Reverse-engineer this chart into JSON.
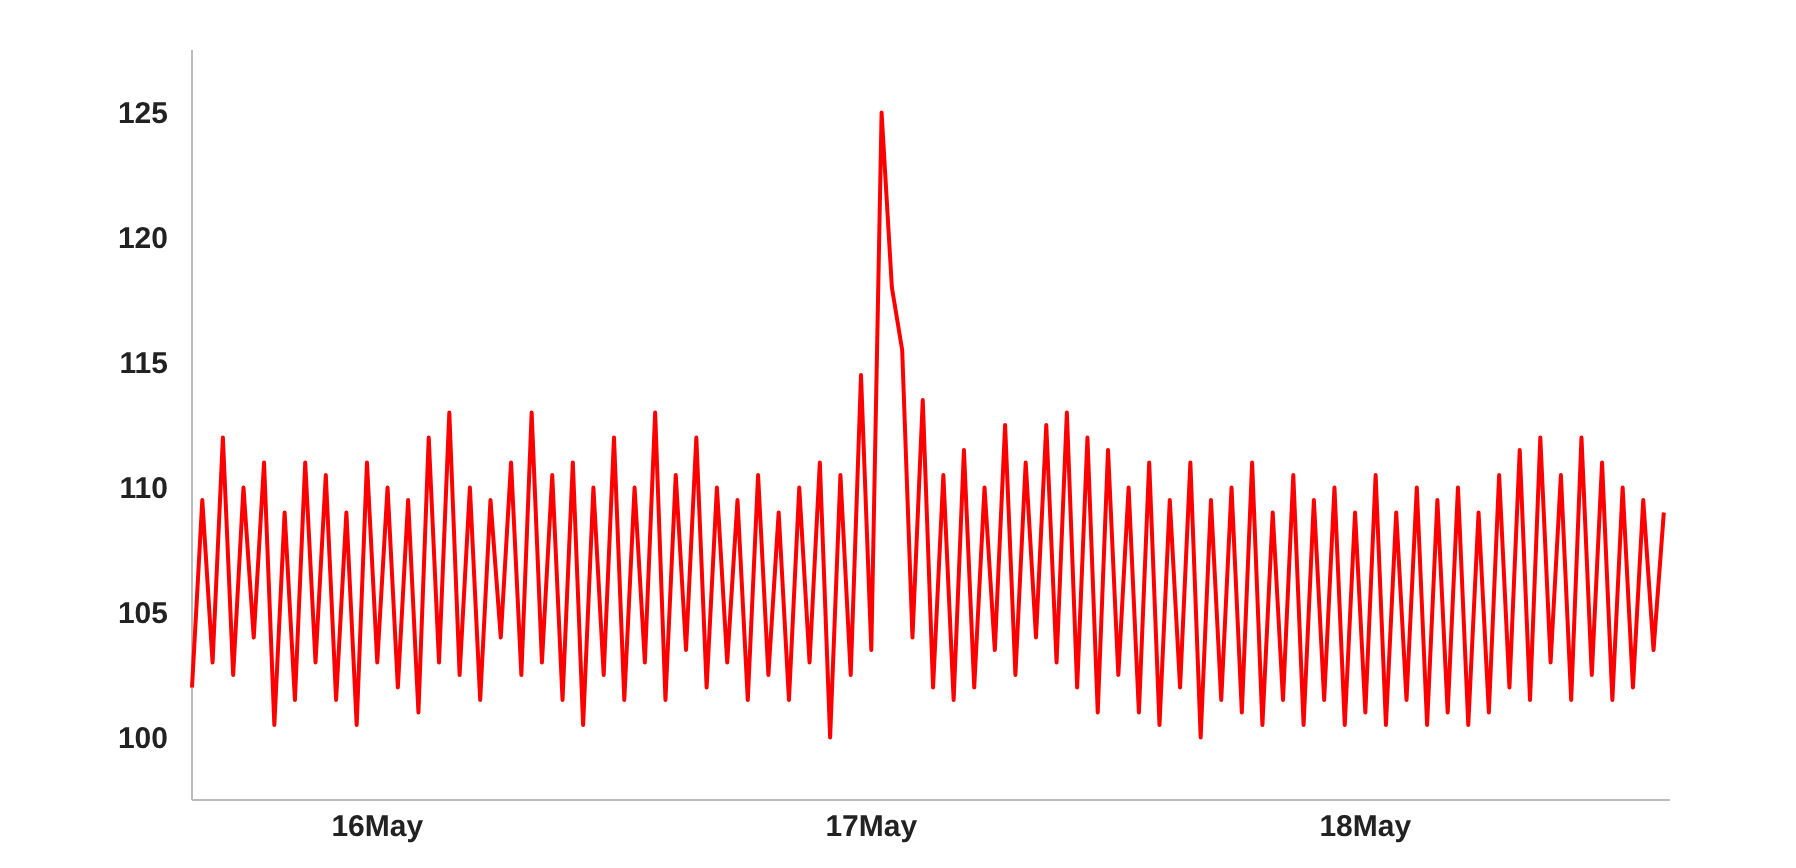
{
  "chart_data": {
    "type": "line",
    "x": [
      "--05-15T15:00",
      "--05-15T15:30",
      "--05-15T16:00",
      "--05-15T16:30",
      "--05-15T17:00",
      "--05-15T17:30",
      "--05-15T18:00",
      "--05-15T18:30",
      "--05-15T19:00",
      "--05-15T19:30",
      "--05-15T20:00",
      "--05-15T20:30",
      "--05-15T21:00",
      "--05-15T21:30",
      "--05-15T22:00",
      "--05-15T22:30",
      "--05-15T23:00",
      "--05-15T23:30",
      "--05-16T00:00",
      "--05-16T00:30",
      "--05-16T01:00",
      "--05-16T01:30",
      "--05-16T02:00",
      "--05-16T02:30",
      "--05-16T03:00",
      "--05-16T03:30",
      "--05-16T04:00",
      "--05-16T04:30",
      "--05-16T05:00",
      "--05-16T05:30",
      "--05-16T06:00",
      "--05-16T06:30",
      "--05-16T07:00",
      "--05-16T07:30",
      "--05-16T08:00",
      "--05-16T08:30",
      "--05-16T09:00",
      "--05-16T09:30",
      "--05-16T10:00",
      "--05-16T10:30",
      "--05-16T11:00",
      "--05-16T11:30",
      "--05-16T12:00",
      "--05-16T12:30",
      "--05-16T13:00",
      "--05-16T13:30",
      "--05-16T14:00",
      "--05-16T14:30",
      "--05-16T15:00",
      "--05-16T15:30",
      "--05-16T16:00",
      "--05-16T16:30",
      "--05-16T17:00",
      "--05-16T17:30",
      "--05-16T18:00",
      "--05-16T18:30",
      "--05-16T19:00",
      "--05-16T19:30",
      "--05-16T20:00",
      "--05-16T20:30",
      "--05-16T21:00",
      "--05-16T21:30",
      "--05-16T22:00",
      "--05-16T22:30",
      "--05-16T23:00",
      "--05-16T23:30",
      "--05-17T00:00",
      "--05-17T00:30",
      "--05-17T01:00",
      "--05-17T01:30",
      "--05-17T02:00",
      "--05-17T02:30",
      "--05-17T03:00",
      "--05-17T03:30",
      "--05-17T04:00",
      "--05-17T04:30",
      "--05-17T05:00",
      "--05-17T05:30",
      "--05-17T06:00",
      "--05-17T06:30",
      "--05-17T07:00",
      "--05-17T07:30",
      "--05-17T08:00",
      "--05-17T08:30",
      "--05-17T09:00",
      "--05-17T09:30",
      "--05-17T10:00",
      "--05-17T10:30",
      "--05-17T11:00",
      "--05-17T11:30",
      "--05-17T12:00",
      "--05-17T12:30",
      "--05-17T13:00",
      "--05-17T13:30",
      "--05-17T14:00",
      "--05-17T14:30",
      "--05-17T15:00",
      "--05-17T15:30",
      "--05-17T16:00",
      "--05-17T16:30",
      "--05-17T17:00",
      "--05-17T17:30",
      "--05-17T18:00",
      "--05-17T18:30",
      "--05-17T19:00",
      "--05-17T19:30",
      "--05-17T20:00",
      "--05-17T20:30",
      "--05-17T21:00",
      "--05-17T21:30",
      "--05-17T22:00",
      "--05-17T22:30",
      "--05-17T23:00",
      "--05-17T23:30",
      "--05-18T00:00",
      "--05-18T00:30",
      "--05-18T01:00",
      "--05-18T01:30",
      "--05-18T02:00",
      "--05-18T02:30",
      "--05-18T03:00",
      "--05-18T03:30",
      "--05-18T04:00",
      "--05-18T04:30",
      "--05-18T05:00",
      "--05-18T05:30",
      "--05-18T06:00",
      "--05-18T06:30",
      "--05-18T07:00",
      "--05-18T07:30",
      "--05-18T08:00",
      "--05-18T08:30",
      "--05-18T09:00",
      "--05-18T09:30",
      "--05-18T10:00",
      "--05-18T10:30",
      "--05-18T11:00",
      "--05-18T11:30",
      "--05-18T12:00",
      "--05-18T12:30",
      "--05-18T13:00",
      "--05-18T13:30",
      "--05-18T14:00",
      "--05-18T14:30"
    ],
    "series": [
      {
        "color": "#ff0000",
        "values": [
          102,
          109.5,
          103,
          112,
          102.5,
          110,
          104,
          111,
          100.5,
          109,
          101.5,
          111,
          103,
          110.5,
          101.5,
          109,
          100.5,
          111,
          103,
          110,
          102,
          109.5,
          101,
          112,
          103,
          113,
          102.5,
          110,
          101.5,
          109.5,
          104,
          111,
          102.5,
          113,
          103,
          110.5,
          101.5,
          111,
          100.5,
          110,
          102.5,
          112,
          101.5,
          110,
          103,
          113,
          101.5,
          110.5,
          103.5,
          112,
          102,
          110,
          103,
          109.5,
          101.5,
          110.5,
          102.5,
          109,
          101.5,
          110,
          103,
          111,
          100,
          110.5,
          102.5,
          114.5,
          103.5,
          125,
          118,
          115.5,
          104,
          113.5,
          102,
          110.5,
          101.5,
          111.5,
          102,
          110,
          103.5,
          112.5,
          102.5,
          111,
          104,
          112.5,
          103,
          113,
          102,
          112,
          101,
          111.5,
          102.5,
          110,
          101,
          111,
          100.5,
          109.5,
          102,
          111,
          100,
          109.5,
          101.5,
          110,
          101,
          111,
          100.5,
          109,
          101.5,
          110.5,
          100.5,
          109.5,
          101.5,
          110,
          100.5,
          109,
          101,
          110.5,
          100.5,
          109,
          101.5,
          110,
          100.5,
          109.5,
          101,
          110,
          100.5,
          109,
          101,
          110.5,
          102,
          111.5,
          101.5,
          112,
          103,
          110.5,
          101.5,
          112,
          102.5,
          111,
          101.5,
          110,
          102,
          109.5,
          103.5,
          109
        ]
      }
    ],
    "xlim": [
      "--05-15T15:00",
      "--05-18T14:48"
    ],
    "xticks": [
      {
        "value": "--05-16",
        "label": "16May"
      },
      {
        "value": "--05-17",
        "label": "17May"
      },
      {
        "value": "--05-18",
        "label": "18May"
      }
    ],
    "ylim": [
      97.5,
      127.5
    ],
    "yticks": [
      100,
      105,
      110,
      115,
      120,
      125
    ],
    "grid": false
  }
}
